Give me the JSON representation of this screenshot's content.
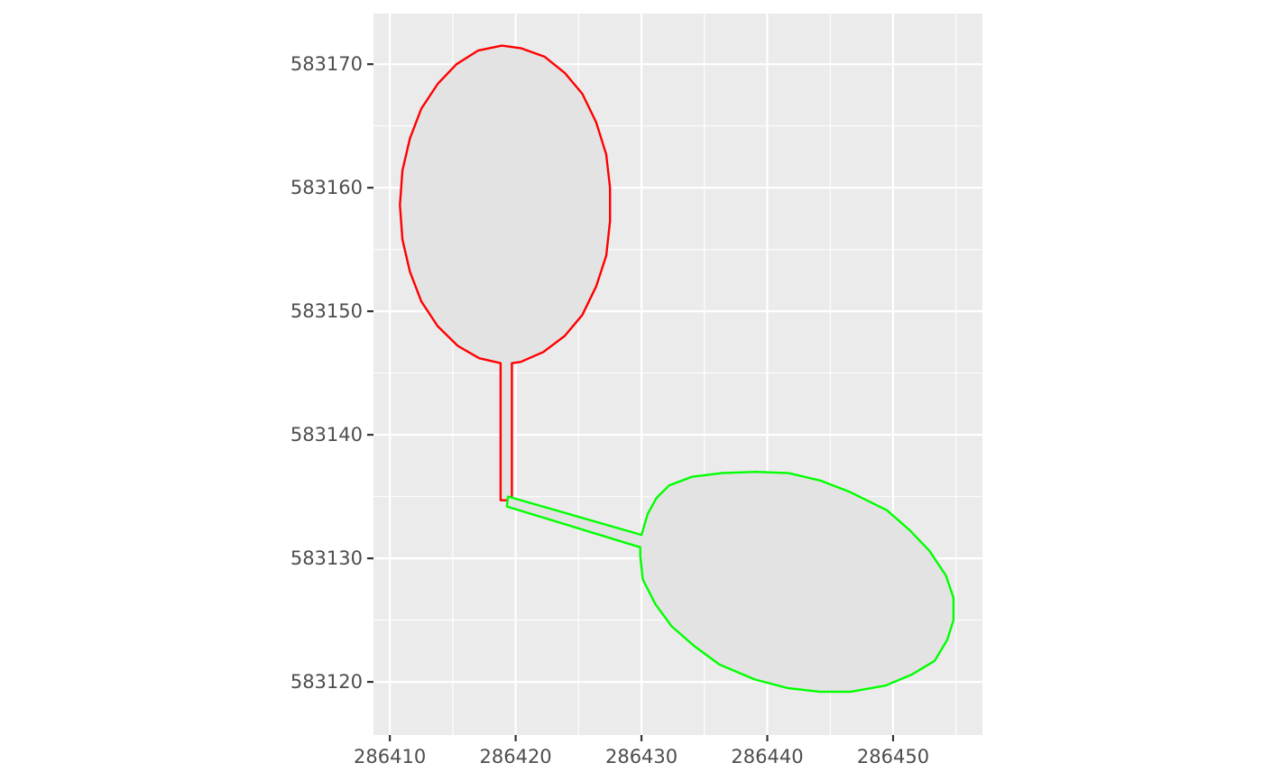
{
  "chart_data": {
    "type": "map",
    "title": "",
    "xlabel": "",
    "ylabel": "",
    "xlim": [
      286408.7,
      286457.1
    ],
    "ylim": [
      583115.7,
      583174.1
    ],
    "grid": true,
    "x_ticks": [
      286410,
      286420,
      286430,
      286440,
      286450
    ],
    "y_ticks": [
      583120,
      583130,
      583140,
      583150,
      583160,
      583170
    ],
    "x_tick_labels": [
      "286410",
      "286420",
      "286430",
      "286440",
      "286450"
    ],
    "y_tick_labels": [
      "583120",
      "583130",
      "583140",
      "583150",
      "583160",
      "583170"
    ],
    "colors": {
      "panel": "#EBEBEB",
      "grid": "#FFFFFF",
      "fill": "#E3E3E3",
      "axis_text": "#4D4D4D",
      "tick": "#333333"
    },
    "shapes": [
      {
        "name": "red-shape",
        "color": "#FF0000",
        "points": [
          [
            286418.9,
            583171.5
          ],
          [
            286420.4,
            583171.3
          ],
          [
            286422.3,
            583170.6
          ],
          [
            286423.9,
            583169.3
          ],
          [
            286425.3,
            583167.6
          ],
          [
            286426.4,
            583165.3
          ],
          [
            286427.2,
            583162.7
          ],
          [
            286427.5,
            583160.0
          ],
          [
            286427.5,
            583157.3
          ],
          [
            286427.2,
            583154.5
          ],
          [
            286426.4,
            583152.0
          ],
          [
            286425.3,
            583149.7
          ],
          [
            286423.9,
            583148.0
          ],
          [
            286422.2,
            583146.7
          ],
          [
            286420.4,
            583145.9
          ],
          [
            286419.7,
            583145.8
          ],
          [
            286419.7,
            583134.7
          ],
          [
            286418.8,
            583134.7
          ],
          [
            286418.8,
            583145.8
          ],
          [
            286417.1,
            583146.2
          ],
          [
            286415.4,
            583147.2
          ],
          [
            286413.8,
            583148.8
          ],
          [
            286412.5,
            583150.8
          ],
          [
            286411.6,
            583153.2
          ],
          [
            286411.0,
            583155.8
          ],
          [
            286410.8,
            583158.6
          ],
          [
            286411.0,
            583161.4
          ],
          [
            286411.6,
            583164.0
          ],
          [
            286412.5,
            583166.4
          ],
          [
            286413.8,
            583168.4
          ],
          [
            286415.3,
            583170.0
          ],
          [
            286417.0,
            583171.1
          ],
          [
            286418.9,
            583171.5
          ]
        ]
      },
      {
        "name": "green-shape",
        "color": "#00FF00",
        "points": [
          [
            286430.0,
            583131.9
          ],
          [
            286430.5,
            583133.6
          ],
          [
            286431.2,
            583134.9
          ],
          [
            286432.2,
            583135.9
          ],
          [
            286434.0,
            583136.6
          ],
          [
            286436.4,
            583136.9
          ],
          [
            286439.1,
            583137.0
          ],
          [
            286441.7,
            583136.9
          ],
          [
            286444.2,
            583136.3
          ],
          [
            286446.5,
            583135.4
          ],
          [
            286449.5,
            583133.9
          ],
          [
            286451.3,
            583132.3
          ],
          [
            286452.9,
            583130.6
          ],
          [
            286454.2,
            583128.6
          ],
          [
            286454.8,
            583126.8
          ],
          [
            286454.8,
            583125.0
          ],
          [
            286454.3,
            583123.4
          ],
          [
            286453.3,
            583121.7
          ],
          [
            286451.5,
            583120.6
          ],
          [
            286449.4,
            583119.7
          ],
          [
            286446.6,
            583119.2
          ],
          [
            286444.2,
            583119.2
          ],
          [
            286441.6,
            583119.5
          ],
          [
            286439.0,
            583120.2
          ],
          [
            286436.2,
            583121.4
          ],
          [
            286434.2,
            583122.9
          ],
          [
            286432.4,
            583124.5
          ],
          [
            286431.1,
            583126.3
          ],
          [
            286430.1,
            583128.3
          ],
          [
            286429.9,
            583130.2
          ],
          [
            286429.9,
            583130.9
          ],
          [
            286419.3,
            583134.2
          ],
          [
            286419.4,
            583135.0
          ],
          [
            286430.0,
            583131.9
          ]
        ]
      }
    ]
  }
}
